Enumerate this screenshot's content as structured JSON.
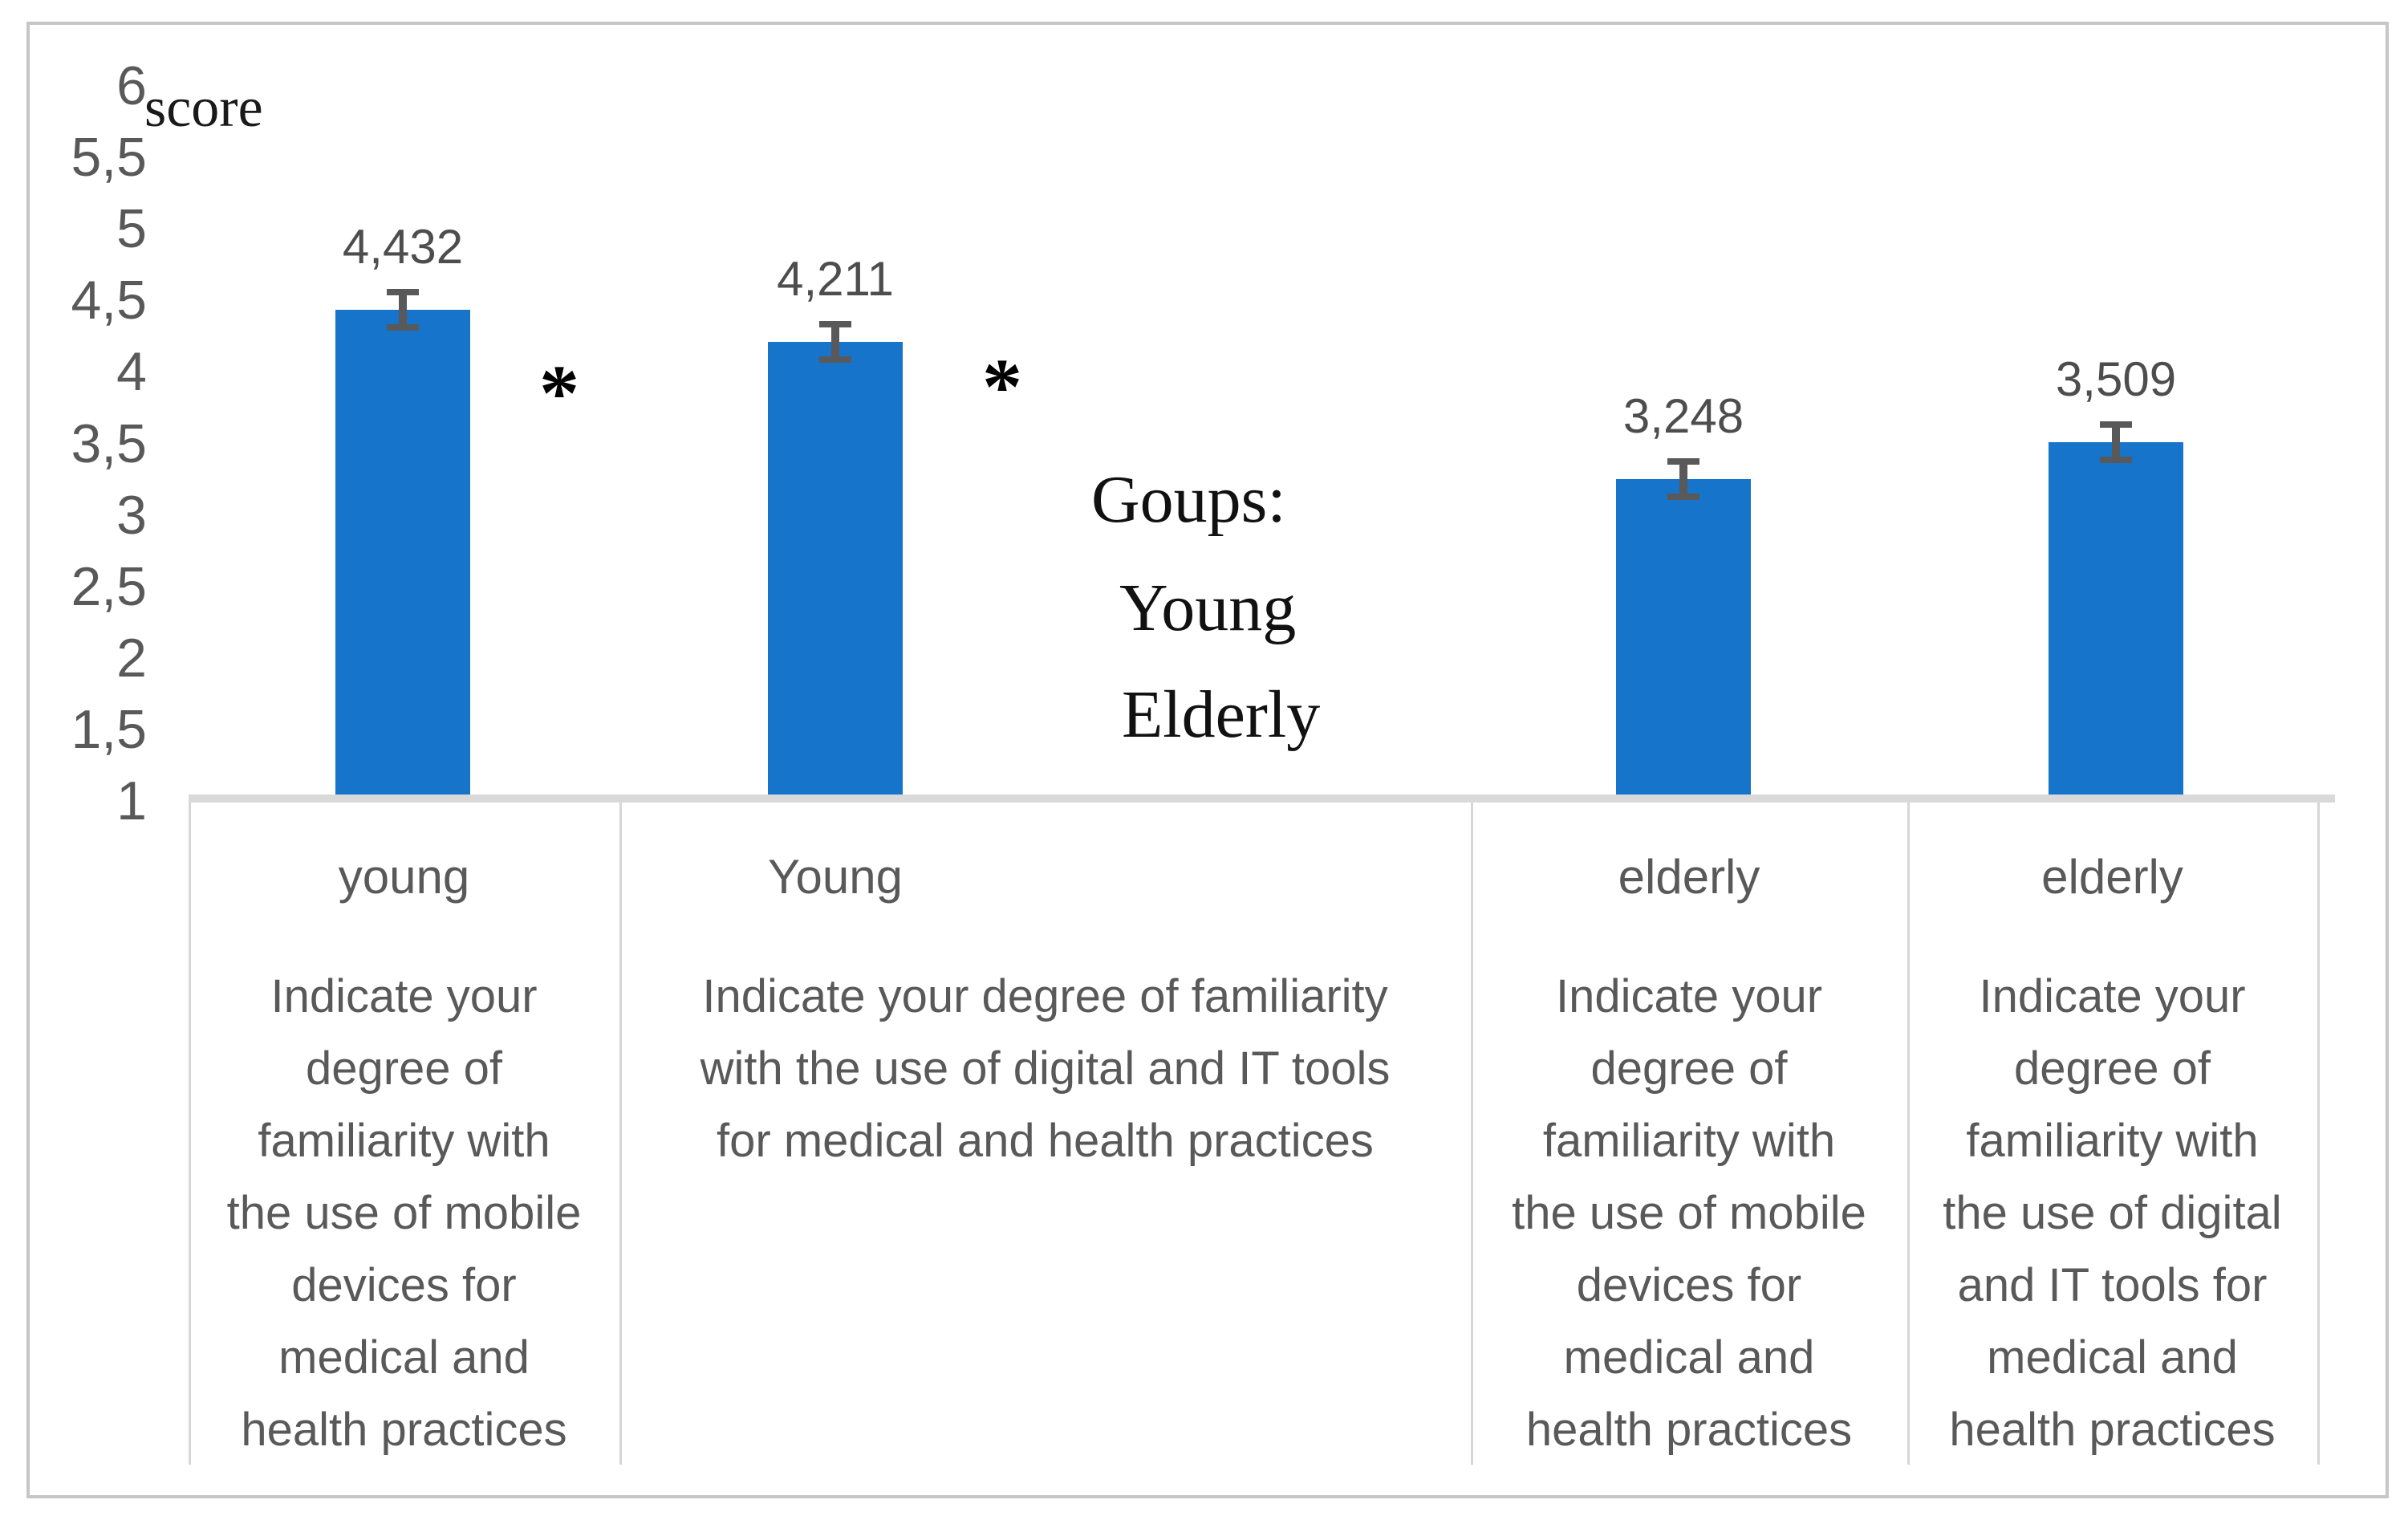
{
  "page": {
    "background": "#FFFFFF",
    "frame_border_color": "#C6C6C6"
  },
  "chart_data": {
    "type": "bar",
    "axis_title": "score",
    "xlabel": "",
    "ylabel": "score",
    "ylim": [
      1,
      6
    ],
    "grid": false,
    "bar_color": "#1674CA",
    "error_bar_color": "#595959",
    "text_color": "#595959",
    "decimal_separator": ",",
    "y_axis": {
      "min": 1,
      "max": 6,
      "step": 0.5,
      "tick_labels": [
        "6",
        "5,5",
        "5",
        "4,5",
        "4",
        "3,5",
        "3",
        "2,5",
        "2",
        "1,5",
        "1"
      ]
    },
    "categories": [
      "young",
      "Young",
      "elderly",
      "elderly"
    ],
    "bars": [
      {
        "group": "young",
        "value": 4.432,
        "label": "4,432",
        "error": 0.1,
        "question_lines": [
          "Indicate your",
          "degree of",
          "familiarity with",
          "the use of mobile",
          "devices for",
          "medical and",
          "health practices"
        ]
      },
      {
        "group": "Young",
        "value": 4.211,
        "label": "4,211",
        "error": 0.1,
        "question_lines": [
          "Indicate your degree of familiarity",
          "with the use of digital and IT tools",
          "for medical and health practices"
        ]
      },
      {
        "group": "elderly",
        "value": 3.248,
        "label": "3,248",
        "error": 0.1,
        "question_lines": [
          "Indicate your",
          "degree of",
          "familiarity with",
          "the use of mobile",
          "devices for",
          "medical and",
          "health practices"
        ]
      },
      {
        "group": "elderly",
        "value": 3.509,
        "label": "3,509",
        "error": 0.1,
        "question_lines": [
          "Indicate your",
          "degree of",
          "familiarity with",
          "the use of digital",
          "and IT tools for",
          "medical and",
          "health practices"
        ]
      }
    ],
    "legend": {
      "title": "Goups:",
      "items": [
        "Young",
        "Elderly"
      ]
    },
    "significance_markers": [
      "*",
      "*"
    ],
    "legend_position": "center-of-plot"
  }
}
